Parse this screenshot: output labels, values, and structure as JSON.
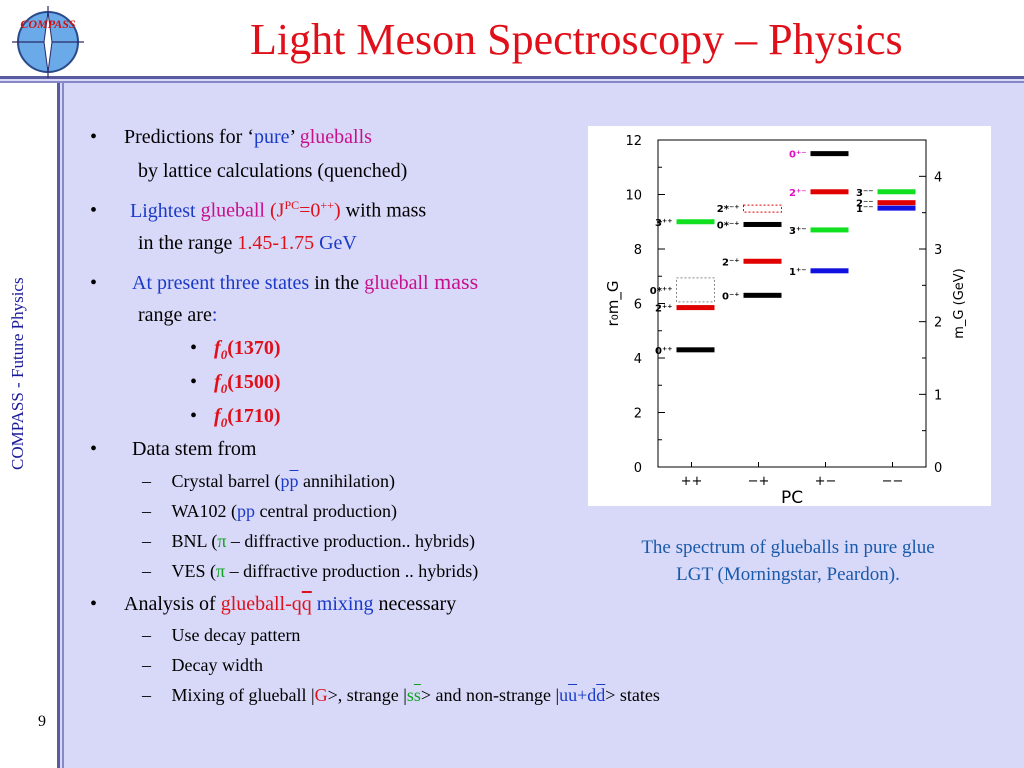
{
  "header": {
    "title": "Light Meson Spectroscopy – Physics",
    "logo_text": "COMPASS"
  },
  "sidebar": {
    "org": "COMPASS - ",
    "topic": "Future Physics",
    "page_number": "9"
  },
  "bullets": {
    "b1_pre": "Predictions for ‘",
    "b1_pure": "pure",
    "b1_post": "’ ",
    "b1_glue": "glueballs",
    "b1_line2": "by lattice calculations (quenched)",
    "b2_light": "Lightest ",
    "b2_glue": "glueball",
    "b2_jpc": " (J",
    "b2_sup": "PC",
    "b2_val": "=0",
    "b2_sup2": "++",
    "b2_close": ")",
    "b2_post": " with mass",
    "b2_line2_pre": "in the range ",
    "b2_range": "1.45-1.75",
    "b2_unit": " GeV",
    "b3_at": "At present three states",
    "b3_in": " in the ",
    "b3_glue": "glueball",
    "b3_mass": " mass",
    "b3_line2": "range are",
    "b3_colon": ":",
    "states": [
      {
        "f": "f",
        "sub": "0",
        "val": "(1370)"
      },
      {
        "f": "f",
        "sub": "0",
        "val": "(1500)"
      },
      {
        "f": "f",
        "sub": "0",
        "val": "(1710)"
      }
    ],
    "b4": "Data stem from",
    "sub1_pre": "Crystal barrel (",
    "sub1_p": "p",
    "sub1_pbar": "p",
    "sub1_post": " annihilation)",
    "sub2_pre": "WA102 (",
    "sub2_pp": "pp",
    "sub2_post": " central production)",
    "sub3_pre": "BNL (",
    "sub3_pi": "π",
    "sub3_post": " – diffractive production.. hybrids)",
    "sub4_pre": "VES (",
    "sub4_pi": "π",
    "sub4_post": " – diffractive production .. hybrids)",
    "b5_pre": "Analysis of ",
    "b5_glue": "glueball-q",
    "b5_qbar": "q",
    "b5_mix": " mixing",
    "b5_post": " necessary",
    "sub5": "Use decay pattern",
    "sub6": "Decay width",
    "sub7_pre": "Mixing of glueball |",
    "sub7_G": "G",
    "sub7_mid": ">, strange |",
    "sub7_s": "s",
    "sub7_sbar": "s",
    "sub7_mid2": "> and non-strange |",
    "sub7_u": "u",
    "sub7_ubar": "u",
    "sub7_plus": "+d",
    "sub7_dbar": "d",
    "sub7_end": "> states",
    "bullet_char": "•",
    "dash_char": "–"
  },
  "caption": {
    "line1": "The spectrum of glueballs in pure glue",
    "line2": "LGT (Morningstar, Peardon)."
  },
  "chart_data": {
    "type": "bar",
    "x_label": "PC",
    "y_left_label": "r₀m_G",
    "y_right_label": "m_G (GeV)",
    "ylim_left": [
      0,
      12
    ],
    "ylim_right": [
      0,
      4.5
    ],
    "left_ticks": [
      "0",
      "2",
      "4",
      "6",
      "8",
      "10",
      "12"
    ],
    "right_ticks": [
      "0",
      "1",
      "2",
      "3",
      "4"
    ],
    "categories": [
      "++",
      "−+",
      "+−",
      "−−"
    ],
    "colors": {
      "black": "#000000",
      "red": "#e00000",
      "green": "#10e020",
      "blue": "#1010e0",
      "magenta": "#e010c0"
    },
    "levels": [
      {
        "pc": "++",
        "label": "0⁺⁺",
        "value": 4.3,
        "color": "black",
        "label_color": "black"
      },
      {
        "pc": "++",
        "label": "2⁺⁺",
        "value": 5.85,
        "color": "red",
        "label_color": "black"
      },
      {
        "pc": "++",
        "label": "0*⁺⁺",
        "value": 6.5,
        "color": "box",
        "label_color": "black"
      },
      {
        "pc": "++",
        "label": "3⁺⁺",
        "value": 9.0,
        "color": "green",
        "label_color": "black"
      },
      {
        "pc": "−+",
        "label": "0⁻⁺",
        "value": 6.3,
        "color": "black",
        "label_color": "black"
      },
      {
        "pc": "−+",
        "label": "2⁻⁺",
        "value": 7.55,
        "color": "red",
        "label_color": "black"
      },
      {
        "pc": "−+",
        "label": "0*⁻⁺",
        "value": 8.9,
        "color": "black",
        "label_color": "black"
      },
      {
        "pc": "−+",
        "label": "2*⁻⁺",
        "value": 9.5,
        "color": "redbox",
        "label_color": "black"
      },
      {
        "pc": "+−",
        "label": "1⁺⁻",
        "value": 7.2,
        "color": "blue",
        "label_color": "black"
      },
      {
        "pc": "+−",
        "label": "3⁺⁻",
        "value": 8.7,
        "color": "green",
        "label_color": "black"
      },
      {
        "pc": "+−",
        "label": "2⁺⁻",
        "value": 10.1,
        "color": "red",
        "label_color": "magenta"
      },
      {
        "pc": "+−",
        "label": "0⁺⁻",
        "value": 11.5,
        "color": "black",
        "label_color": "magenta"
      },
      {
        "pc": "−−",
        "label": "1⁻⁻",
        "value": 9.5,
        "color": "blue",
        "label_color": "black"
      },
      {
        "pc": "−−",
        "label": "2⁻⁻",
        "value": 9.7,
        "color": "red",
        "label_color": "black"
      },
      {
        "pc": "−−",
        "label": "3⁻⁻",
        "value": 10.1,
        "color": "green",
        "label_color": "black"
      }
    ]
  }
}
